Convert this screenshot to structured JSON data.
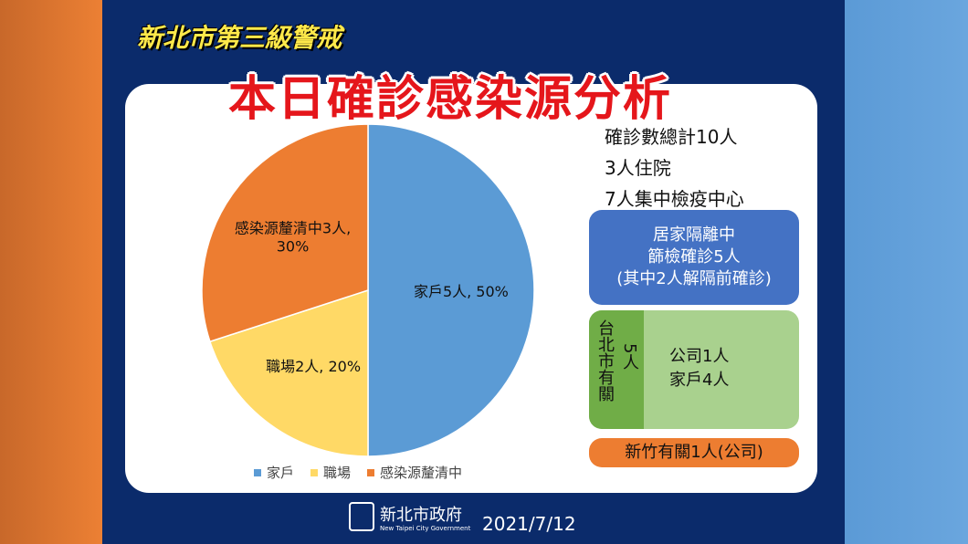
{
  "header": {
    "subtitle": "新北市第三級警戒",
    "title": "本日確診感染源分析"
  },
  "chart_data": {
    "type": "pie",
    "categories": [
      "家戶",
      "職場",
      "感染源釐清中"
    ],
    "values": [
      50,
      20,
      30
    ],
    "value_labels": [
      "家戶5人, 50%",
      "職場2人, 20%",
      "感染源釐清中3人, 30%"
    ],
    "colors": [
      "#5b9bd5",
      "#ffd966",
      "#ed7d31"
    ]
  },
  "summary": [
    "確診數總計10人",
    "3人住院",
    "7人集中檢疫中心"
  ],
  "home_quarantine": [
    "居家隔離中",
    "篩檢確診5人",
    "(其中2人解隔前確診)"
  ],
  "taipei": {
    "label": "台北市有關",
    "count": "5人",
    "items": [
      "公司1人",
      "家戶4人"
    ]
  },
  "hsinchu": "新竹有關1人(公司)",
  "footer": {
    "org": "新北市政府",
    "org_en": "New Taipei City Government",
    "date": "2021/7/12"
  }
}
